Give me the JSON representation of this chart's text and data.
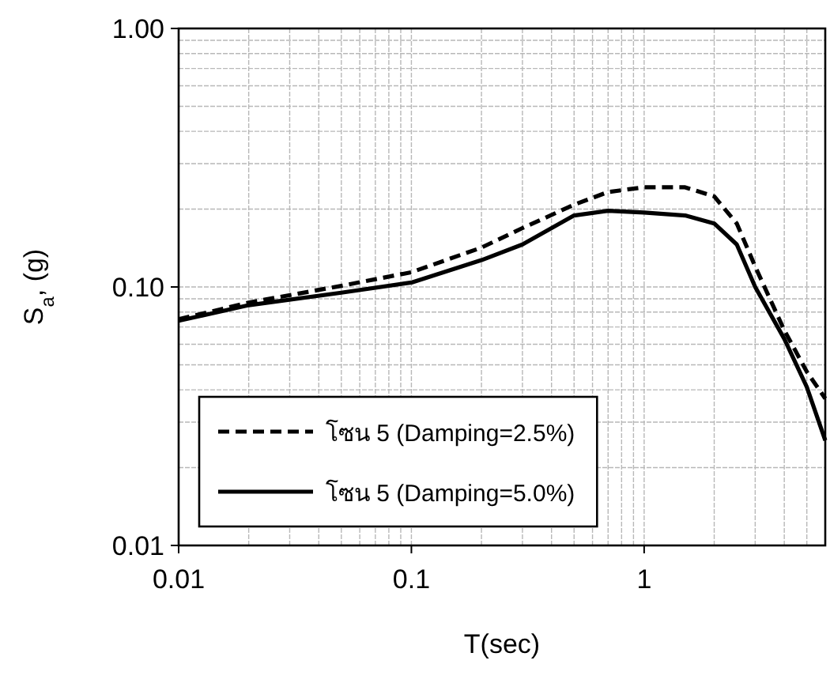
{
  "chart_data": {
    "type": "line",
    "xlabel": "T(sec)",
    "ylabel": "S$_{a}$, (g)",
    "log": "xy",
    "grid": true,
    "legend": "bottom left",
    "xlim": [
      0.01,
      6
    ],
    "ylim": [
      0.01,
      1
    ],
    "xticks": [
      0.01,
      0.1,
      1
    ],
    "yticks": [
      {
        "value": 1,
        "label": "1.00"
      },
      {
        "value": 0.1,
        "label": "0.10"
      },
      0.01
    ],
    "x": [
      0.01,
      0.02,
      0.05,
      0.1,
      0.2,
      0.3,
      0.5,
      0.7,
      1,
      1.5,
      2,
      2.5,
      3,
      4,
      5,
      6
    ],
    "series": [
      {
        "name": "โซน 5 (Damping=2.5%)",
        "color": "#000000",
        "line_style": "dashed",
        "values": [
          0.075,
          0.087,
          0.101,
          0.114,
          0.142,
          0.169,
          0.208,
          0.233,
          0.243,
          0.243,
          0.224,
          0.176,
          0.12,
          0.068,
          0.047,
          0.037
        ]
      },
      {
        "name": "โซน 5 (Damping=5.0%)",
        "color": "#000000",
        "line_style": "solid",
        "values": [
          0.074,
          0.085,
          0.095,
          0.104,
          0.127,
          0.146,
          0.189,
          0.197,
          0.194,
          0.189,
          0.176,
          0.146,
          0.1,
          0.063,
          0.041,
          0.0255
        ]
      }
    ]
  }
}
